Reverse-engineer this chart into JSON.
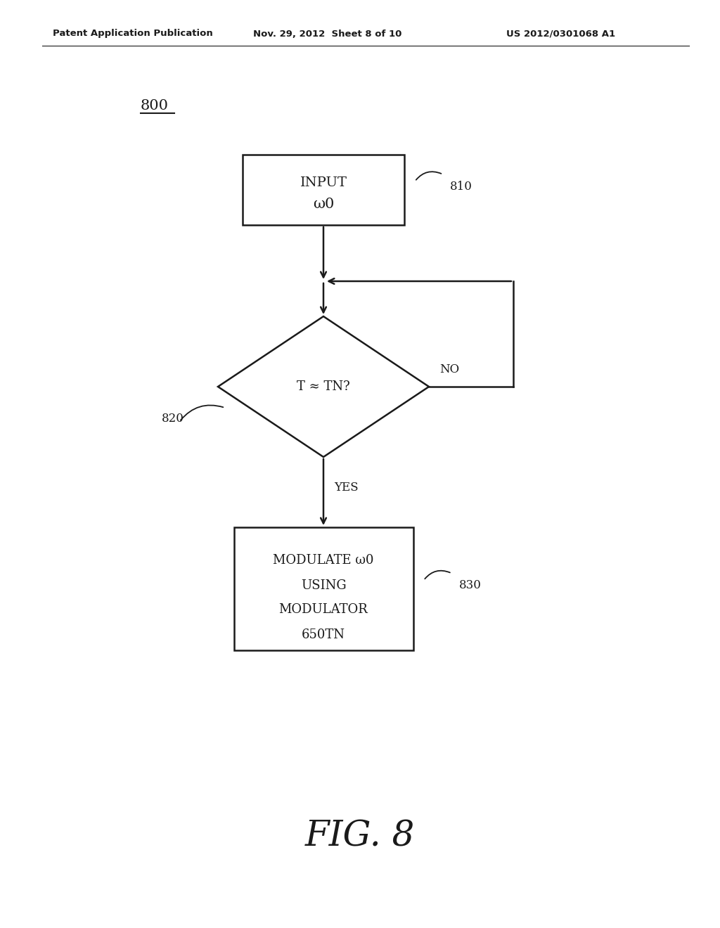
{
  "bg_color": "#ffffff",
  "header_left": "Patent Application Publication",
  "header_mid": "Nov. 29, 2012  Sheet 8 of 10",
  "header_right": "US 2012/0301068 A1",
  "fig_label": "800",
  "fig_caption": "FIG. 8",
  "box1_text": "INPUT\nω0",
  "box1_label": "810",
  "diamond_text": "T ≈ TN?",
  "diamond_label": "820",
  "no_label": "NO",
  "yes_label": "YES",
  "box2_text": "MODULATE ω0\nUSING\nMODULATOR\n650TN",
  "box2_label": "830",
  "line_color": "#1a1a1a",
  "text_color": "#1a1a1a"
}
